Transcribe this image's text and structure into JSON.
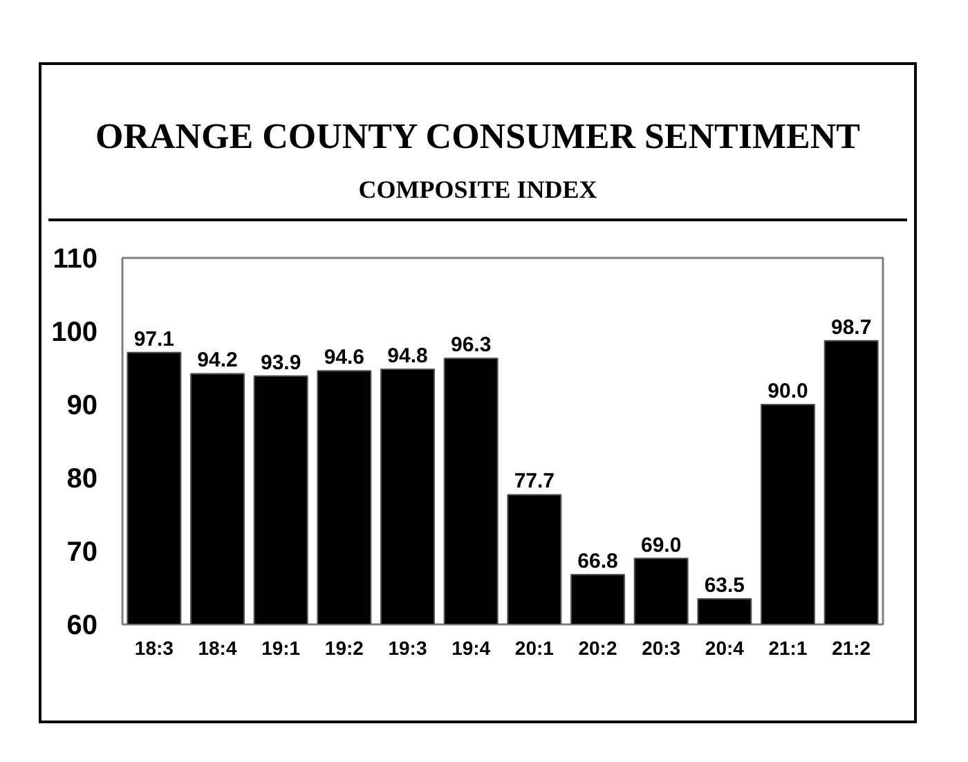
{
  "chart_data": {
    "type": "bar",
    "title": "ORANGE COUNTY CONSUMER SENTIMENT",
    "subtitle": "COMPOSITE INDEX",
    "categories": [
      "18:3",
      "18:4",
      "19:1",
      "19:2",
      "19:3",
      "19:4",
      "20:1",
      "20:2",
      "20:3",
      "20:4",
      "21:1",
      "21:2"
    ],
    "values": [
      97.1,
      94.2,
      93.9,
      94.6,
      94.8,
      96.3,
      77.7,
      66.8,
      69.0,
      63.5,
      90.0,
      98.7
    ],
    "value_labels": [
      "97.1",
      "94.2",
      "93.9",
      "94.6",
      "94.8",
      "96.3",
      "77.7",
      "66.8",
      "69.0",
      "63.5",
      "90.0",
      "98.7"
    ],
    "color": "#000000",
    "ylim": [
      60,
      110
    ],
    "yticks": [
      60,
      70,
      80,
      90,
      100,
      110
    ]
  }
}
